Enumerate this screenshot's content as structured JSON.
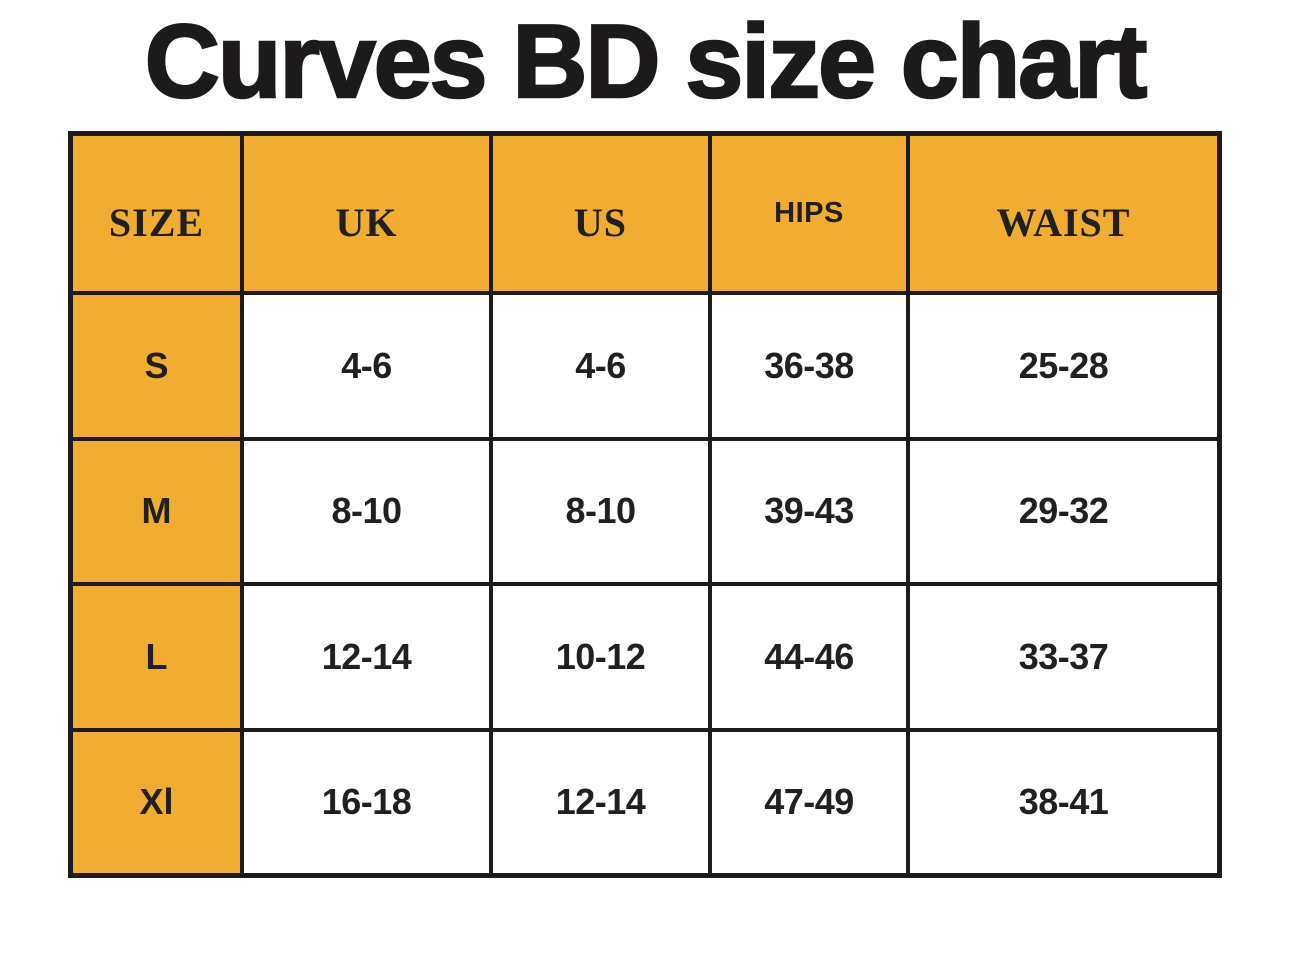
{
  "page": {
    "title": "Curves BD size chart"
  },
  "colors": {
    "accent_orange": "#f1ac32",
    "grid_border": "#1d1b1b",
    "text_dark": "#221f20",
    "background": "#ffffff"
  },
  "chart_data": {
    "type": "table",
    "title": "Curves BD size chart",
    "columns": [
      "SIZE",
      "UK",
      "US",
      "HIPS",
      "WAIST"
    ],
    "rows": [
      {
        "cells": [
          "S",
          "4-6",
          "4-6",
          "36-38",
          "25-28"
        ]
      },
      {
        "cells": [
          "M",
          "8-10",
          "8-10",
          "39-43",
          "29-32"
        ]
      },
      {
        "cells": [
          "L",
          "12-14",
          "10-12",
          "44-46",
          "33-37"
        ]
      },
      {
        "cells": [
          "Xl",
          "16-18",
          "12-14",
          "47-49",
          "38-41"
        ]
      }
    ]
  }
}
